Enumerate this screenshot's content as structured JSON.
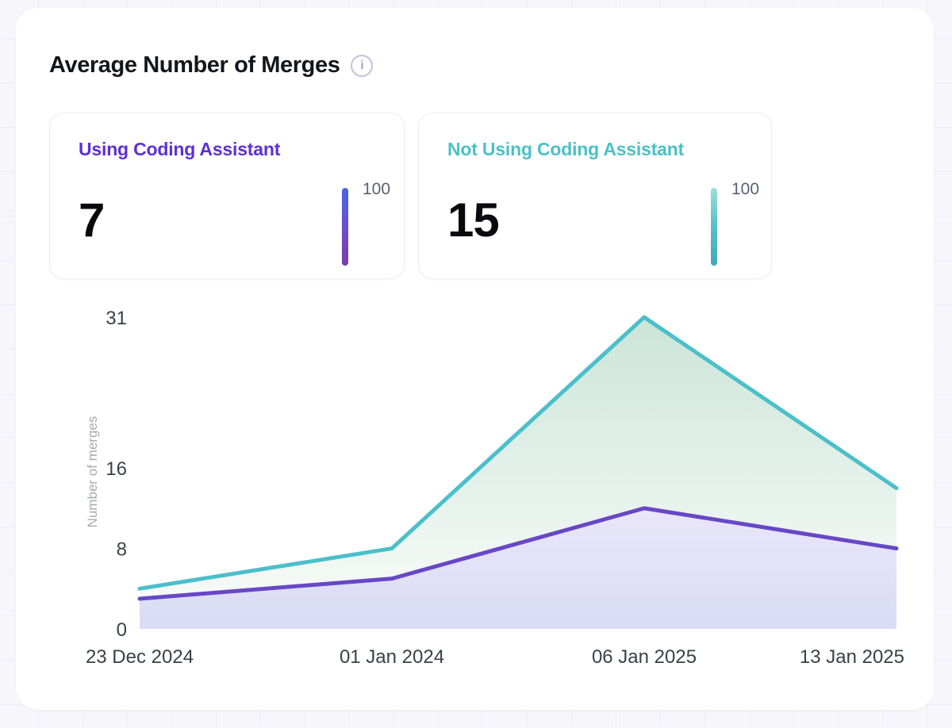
{
  "header": {
    "title": "Average Number of Merges",
    "info_icon_glyph": "i"
  },
  "stat_cards": [
    {
      "label": "Using Coding Assistant",
      "value": "7",
      "scale_max": "100",
      "accent_color": "#5d2fd6",
      "bar_gradient": [
        "#4565e8",
        "#6a4fd0",
        "#7c3bad"
      ]
    },
    {
      "label": "Not Using Coding Assistant",
      "value": "15",
      "scale_max": "100",
      "accent_color": "#4ac1c6",
      "bar_gradient": [
        "#99ded5",
        "#57bfcd",
        "#3fa8bd"
      ]
    }
  ],
  "chart_data": {
    "type": "area",
    "title": "Average Number of Merges",
    "x": [
      "23 Dec 2024",
      "01 Jan 2024",
      "06 Jan 2025",
      "13 Jan 2025"
    ],
    "series": [
      {
        "name": "Not Using Coding Assistant",
        "values": [
          4,
          8,
          31,
          14
        ],
        "line_color": "#4bbfcb",
        "fill_top": "#cbe5d8",
        "fill_bottom": "#fbfcfb"
      },
      {
        "name": "Using Coding Assistant",
        "values": [
          3,
          5,
          12,
          8
        ],
        "line_color": "#6847c5",
        "fill_top": "#eae6fa",
        "fill_bottom": "#d9dcf5"
      }
    ],
    "xlabel": "",
    "ylabel": "Number of merges",
    "yticks": [
      0,
      8,
      16,
      31
    ],
    "ylim": [
      0,
      31
    ],
    "grid": false,
    "legend_position": "none",
    "axis_text_color": "#3b4048",
    "ylabel_color": "#a7aab1"
  }
}
